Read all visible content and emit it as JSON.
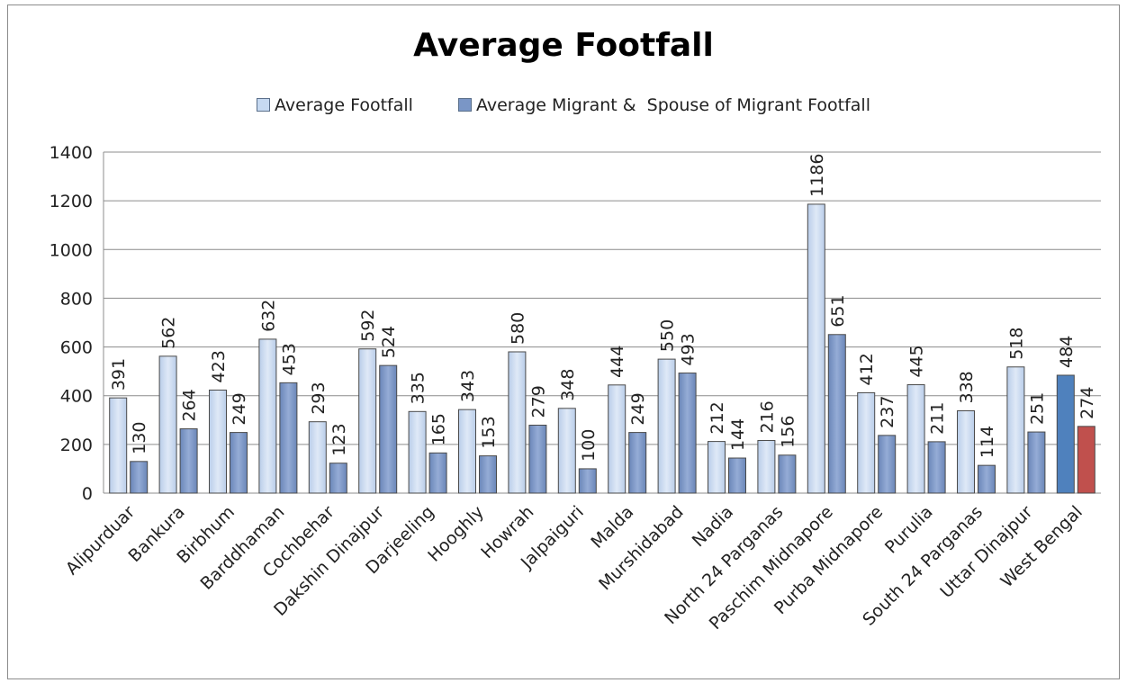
{
  "chart_data": {
    "type": "bar",
    "title": "Average Footfall",
    "categories": [
      "Alipurduar",
      "Bankura",
      "Birbhum",
      "Barddhaman",
      "Cochbehar",
      "Dakshin Dinajpur",
      "Darjeeling",
      "Hooghly",
      "Howrah",
      "Jalpaiguri",
      "Malda",
      "Murshidabad",
      "Nadia",
      "North 24 Parganas",
      "Paschim Midnapore",
      "Purba Midnapore",
      "Purulia",
      "South 24 Parganas",
      "Uttar Dinajpur",
      "West Bengal"
    ],
    "series": [
      {
        "name": "Average Footfall",
        "color": "#c6d9f1",
        "values": [
          391,
          562,
          423,
          632,
          293,
          592,
          335,
          343,
          580,
          348,
          444,
          550,
          212,
          216,
          1186,
          412,
          445,
          338,
          518,
          484
        ]
      },
      {
        "name": "Average Migrant &  Spouse of Migrant Footfall",
        "color": "#7a96c6",
        "values": [
          130,
          264,
          249,
          453,
          123,
          524,
          165,
          153,
          279,
          100,
          249,
          493,
          144,
          156,
          651,
          237,
          211,
          114,
          251,
          274
        ]
      }
    ],
    "highlight": {
      "category": "West Bengal",
      "colors": [
        "#4f81bd",
        "#c0504d"
      ]
    },
    "ylim": [
      0,
      1400
    ],
    "yticks": [
      0,
      200,
      400,
      600,
      800,
      1000,
      1200,
      1400
    ],
    "grid": true,
    "legend_position": "top",
    "xlabel": "",
    "ylabel": ""
  }
}
